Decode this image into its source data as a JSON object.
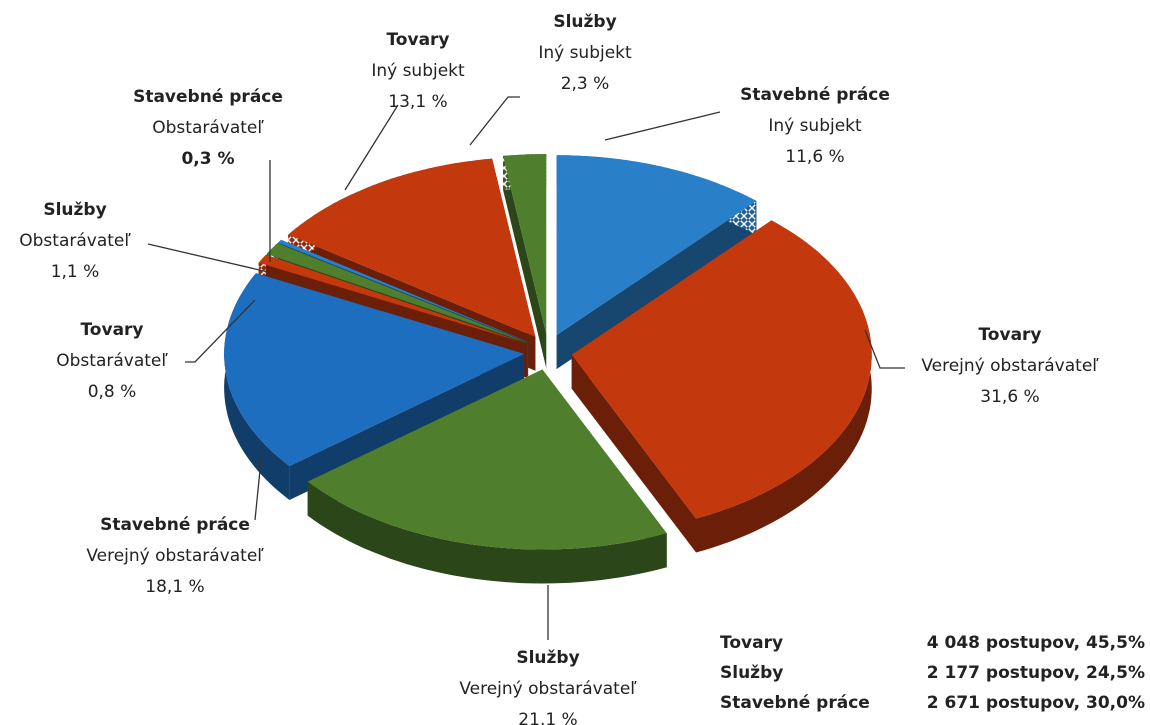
{
  "chart_data": {
    "type": "pie",
    "groups": [
      "Stavebné práce",
      "Tovary",
      "Služby",
      "Stavebné práce",
      "Tovary",
      "Služby",
      "Stavebné práce",
      "Tovary",
      "Služby"
    ],
    "categories": [
      "Iný subjekt",
      "Verejný obstarávateľ",
      "Verejný obstarávateľ",
      "Verejný obstarávateľ",
      "Obstarávateľ",
      "Obstarávateľ",
      "Obstarávateľ",
      "Iný subjekt",
      "Iný subjekt"
    ],
    "values": [
      11.6,
      31.6,
      21.1,
      18.1,
      0.8,
      1.1,
      0.3,
      13.1,
      2.3
    ],
    "value_labels": [
      "11,6 %",
      "31,6 %",
      "21,1 %",
      "18,1 %",
      "0,8 %",
      "1,1 %",
      "0,3 %",
      "13,1 %",
      "2,3 %"
    ],
    "colors": [
      "#2a7fc9",
      "#c4380e",
      "#4f7f2d",
      "#1e6ec0",
      "#c4380e",
      "#4f7f2d",
      "#2a7fc9",
      "#c4380e",
      "#4f7f2d"
    ],
    "patterned": [
      true,
      false,
      false,
      false,
      true,
      true,
      true,
      true,
      true
    ],
    "group_colors": {
      "Tovary": "#c4441c",
      "Služby": "#5d8f2f",
      "Stavebné práce": "#2a86c8"
    },
    "summary": [
      {
        "name": "Tovary",
        "label": "4 048 postupov, 45,5%"
      },
      {
        "name": "Služby",
        "label": "2 177 postupov, 24,5%"
      },
      {
        "name": "Stavebné práce",
        "label": "2 671 postupov, 30,0%"
      }
    ]
  }
}
